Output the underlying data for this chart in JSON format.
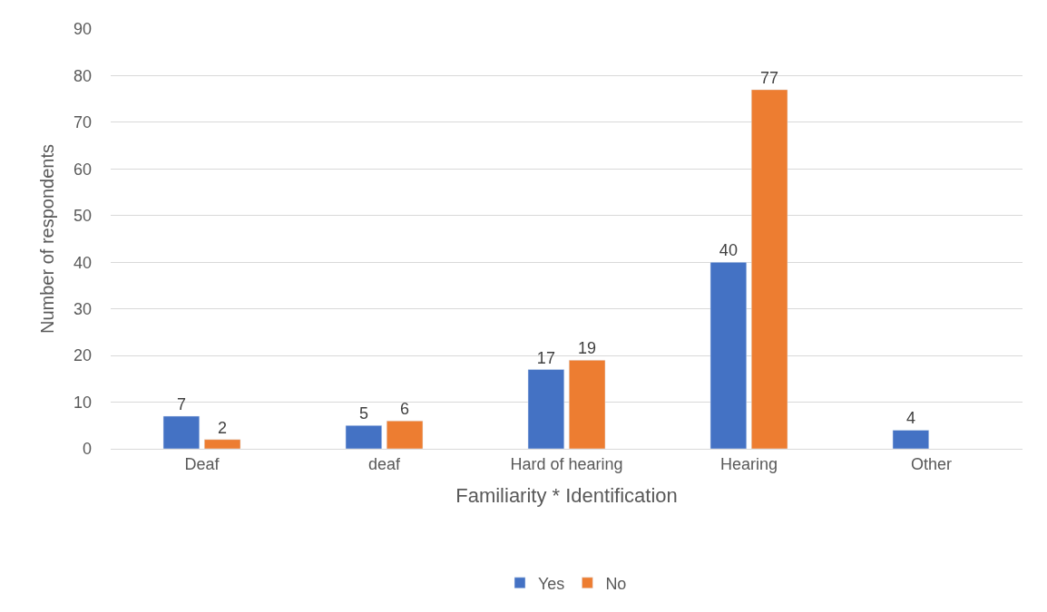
{
  "chart_data": {
    "type": "bar",
    "xlabel": "Familiarity * Identification",
    "ylabel": "Number of respondents",
    "categories": [
      "Deaf",
      "deaf",
      "Hard of hearing",
      "Hearing",
      "Other"
    ],
    "series": [
      {
        "name": "Yes",
        "color": "#4472c4",
        "values": [
          7,
          5,
          17,
          40,
          4
        ]
      },
      {
        "name": "No",
        "color": "#ed7d31",
        "values": [
          2,
          6,
          19,
          77,
          null
        ]
      }
    ],
    "ylim": [
      0,
      90
    ],
    "yticks": [
      0,
      10,
      20,
      30,
      40,
      50,
      60,
      70,
      80,
      90
    ],
    "grid": "y",
    "legend": "bottom",
    "data_labels": true
  }
}
